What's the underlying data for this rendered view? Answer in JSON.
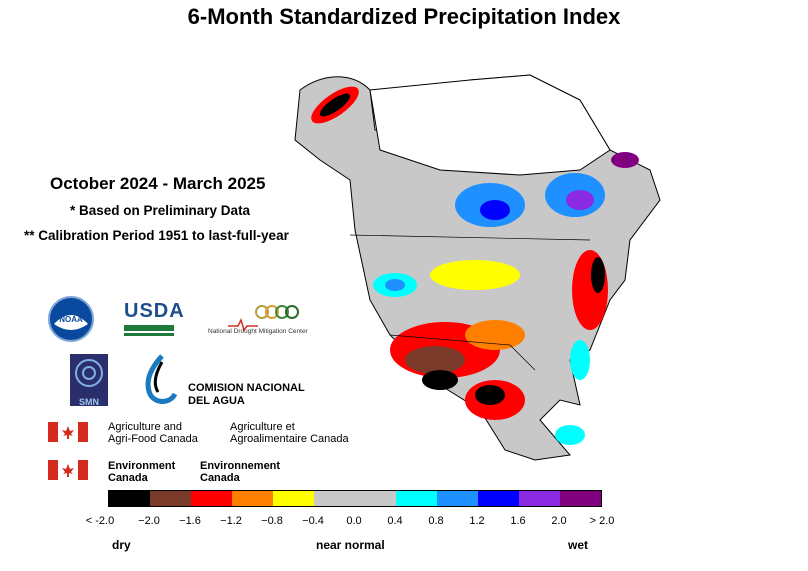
{
  "title": "6-Month Standardized Precipitation Index",
  "period": "October 2024 - March 2025",
  "note1": "* Based on Preliminary Data",
  "note2": "** Calibration Period 1951 to last-full-year",
  "logos": {
    "noaa": "NOAA",
    "usda": "USDA",
    "ndmc": "National Drought Mitigation Center",
    "smn": "SMN",
    "conagua_line1": "COMISION NACIONAL",
    "conagua_line2": "DEL AGUA",
    "agr_en_1": "Agriculture and",
    "agr_en_2": "Agri-Food Canada",
    "agr_fr_1": "Agriculture et",
    "agr_fr_2": "Agroalimentaire Canada",
    "env_en_1": "Environment",
    "env_en_2": "Canada",
    "env_fr_1": "Environnement",
    "env_fr_2": "Canada"
  },
  "legend": {
    "colors": [
      "#000000",
      "#7a3a2a",
      "#ff0000",
      "#ff7f00",
      "#ffff00",
      "#c8c8c8",
      "#c8c8c8",
      "#00ffff",
      "#1e90ff",
      "#0000ff",
      "#8a2be2",
      "#800080"
    ],
    "ticks": [
      "< -2.0",
      "−2.0",
      "−1.6",
      "−1.2",
      "−0.8",
      "−0.4",
      "0.0",
      "0.4",
      "0.8",
      "1.2",
      "1.6",
      "2.0",
      "> 2.0"
    ],
    "dry": "dry",
    "near_normal": "near normal",
    "wet": "wet"
  }
}
